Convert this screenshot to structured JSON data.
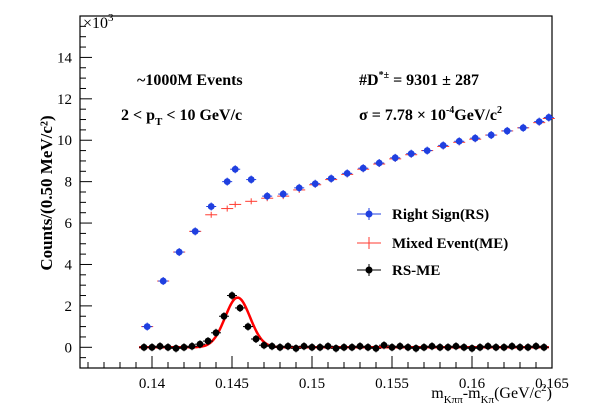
{
  "chart_data": {
    "type": "scatter",
    "title": "",
    "xlabel": {
      "main": "m",
      "sub1": "Kππ",
      "mid": "-m",
      "sub2": "Kπ",
      "unit": "(GeV/c",
      "sup": "2",
      "close": ")"
    },
    "ylabel": "Counts/(0.50 MeV/c²)",
    "y_multiplier": {
      "base": "×10",
      "exp": "3"
    },
    "xlim": [
      0.1355,
      0.165
    ],
    "ylim": [
      -1,
      16
    ],
    "x_ticks": [
      {
        "value": 0.14,
        "label": "0.14"
      },
      {
        "value": 0.145,
        "label": "0.145"
      },
      {
        "value": 0.15,
        "label": "0.15"
      },
      {
        "value": 0.155,
        "label": "0.155"
      },
      {
        "value": 0.16,
        "label": "0.16"
      },
      {
        "value": 0.165,
        "label": "0.165"
      }
    ],
    "y_ticks": [
      {
        "value": 0,
        "label": "0"
      },
      {
        "value": 2,
        "label": "2"
      },
      {
        "value": 4,
        "label": "4"
      },
      {
        "value": 6,
        "label": "6"
      },
      {
        "value": 8,
        "label": "8"
      },
      {
        "value": 10,
        "label": "10"
      },
      {
        "value": 12,
        "label": "12"
      },
      {
        "value": 14,
        "label": "14"
      }
    ],
    "annotations": {
      "events": "~1000M Events",
      "pt_range": {
        "pre": "2 < p",
        "sub": "T",
        "post": " < 10 GeV/c"
      },
      "yield": {
        "pre": "#D",
        "sup": "*±",
        "post": " = 9301  ± 287"
      },
      "sigma": {
        "pre": "σ = 7.78  × 10",
        "sup": "-4",
        "mid": "GeV/c",
        "sup2": "2"
      }
    },
    "legend": {
      "placement": "right-middle",
      "entries": [
        {
          "label": "Right Sign(RS)",
          "marker": "circle",
          "color": "#1f3fe0"
        },
        {
          "label": "Mixed Event(ME)",
          "marker": "cross",
          "color": "#ff3b30"
        },
        {
          "label": "RS-ME",
          "marker": "circle",
          "color": "#000000"
        }
      ]
    },
    "series": [
      {
        "name": "Right Sign(RS)",
        "color": "#1f3fe0",
        "x": [
          0.1397,
          0.1407,
          0.1417,
          0.1427,
          0.1437,
          0.1447,
          0.1452,
          0.1462,
          0.1472,
          0.1482,
          0.1492,
          0.1502,
          0.1512,
          0.1522,
          0.1532,
          0.1542,
          0.1552,
          0.1562,
          0.1572,
          0.1582,
          0.1592,
          0.1602,
          0.1612,
          0.1622,
          0.1632,
          0.1642,
          0.1648
        ],
        "y": [
          1.0,
          3.2,
          4.6,
          5.6,
          6.8,
          8.0,
          8.6,
          8.1,
          7.3,
          7.4,
          7.7,
          7.9,
          8.15,
          8.4,
          8.65,
          8.9,
          9.15,
          9.35,
          9.5,
          9.75,
          9.95,
          10.1,
          10.25,
          10.45,
          10.6,
          10.9,
          11.1
        ]
      },
      {
        "name": "Mixed Event(ME)",
        "color": "#ff3b30",
        "x": [
          0.1397,
          0.1407,
          0.1417,
          0.1427,
          0.1437,
          0.1447,
          0.1452,
          0.1462,
          0.1472,
          0.1482,
          0.1492,
          0.1502,
          0.1512,
          0.1522,
          0.1532,
          0.1542,
          0.1552,
          0.1562,
          0.1572,
          0.1582,
          0.1592,
          0.1602,
          0.1612,
          0.1622,
          0.1632,
          0.1642,
          0.1648
        ],
        "y": [
          1.0,
          3.2,
          4.6,
          5.6,
          6.4,
          6.7,
          6.9,
          7.05,
          7.2,
          7.3,
          7.6,
          7.85,
          8.1,
          8.35,
          8.6,
          8.85,
          9.1,
          9.3,
          9.5,
          9.7,
          9.9,
          10.05,
          10.25,
          10.45,
          10.6,
          10.85,
          11.05
        ]
      },
      {
        "name": "RS-ME",
        "color": "#000000",
        "x": [
          0.1395,
          0.14,
          0.1405,
          0.141,
          0.1415,
          0.142,
          0.1425,
          0.143,
          0.1435,
          0.144,
          0.1445,
          0.145,
          0.1455,
          0.146,
          0.1465,
          0.147,
          0.1475,
          0.148,
          0.1485,
          0.149,
          0.1495,
          0.15,
          0.1505,
          0.151,
          0.1515,
          0.152,
          0.1525,
          0.153,
          0.1535,
          0.154,
          0.1545,
          0.155,
          0.1555,
          0.156,
          0.1565,
          0.157,
          0.1575,
          0.158,
          0.1585,
          0.159,
          0.1595,
          0.16,
          0.1605,
          0.161,
          0.1615,
          0.162,
          0.1625,
          0.163,
          0.1635,
          0.164,
          0.1645
        ],
        "y": [
          0.0,
          0.0,
          0.05,
          0.0,
          -0.05,
          0.0,
          0.05,
          0.15,
          0.3,
          0.7,
          1.5,
          2.5,
          1.9,
          1.0,
          0.4,
          0.1,
          0.05,
          0.0,
          0.05,
          -0.05,
          0.05,
          0.0,
          0.0,
          0.05,
          -0.05,
          0.0,
          0.0,
          0.05,
          0.0,
          -0.05,
          0.1,
          0.0,
          0.05,
          0.0,
          -0.05,
          0.0,
          0.05,
          0.0,
          0.0,
          0.05,
          0.0,
          -0.05,
          0.0,
          0.05,
          0.0,
          0.0,
          0.05,
          0.0,
          0.0,
          0.05,
          0.0
        ]
      }
    ],
    "fit": {
      "name": "fit",
      "color": "#ff0000",
      "x_range": [
        0.1392,
        0.1648
      ],
      "mean": 0.14535,
      "sigma": 0.000778,
      "amplitude": 2.4
    }
  }
}
